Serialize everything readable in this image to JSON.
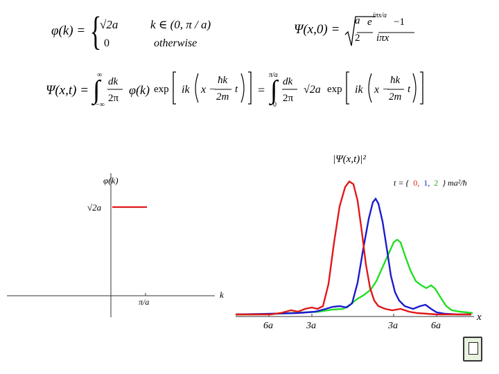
{
  "eq_phi": {
    "lhs": "φ(k) =",
    "case1_val": "√2a",
    "case1_cond": "k ∈ (0, π / a)",
    "case2_val": "0",
    "case2_cond": "otherwise"
  },
  "eq_psi0": {
    "lhs": "Ψ(x,0) =",
    "sqrt_num": "a",
    "sqrt_den": "2",
    "frac_num": "e",
    "frac_num_sup": "iπx/a",
    "frac_num_tail": "−1",
    "frac_den": "iπx"
  },
  "eq_psit": {
    "lhs": "Ψ(x,t) =",
    "int1_upper": "∞",
    "int1_lower": "−∞",
    "dk_num": "dk",
    "dk_den": "2π",
    "phi_k": "φ(k)",
    "exp": "exp",
    "ik": "ik",
    "x_minus": "x −",
    "hk_num": "ħk",
    "hk_den": "2m",
    "t": "t",
    "eq2": "=",
    "int2_upper": "π/a",
    "int2_lower": "0",
    "sqrt2a": "√2a"
  },
  "left_plot": {
    "y_label": "φ(k)",
    "y_tick": "√2a",
    "x_label": "k",
    "x_tick": "π/a"
  },
  "right_plot": {
    "y_label": "|Ψ(x,t)|²",
    "legend_prefix": "t = {",
    "legend_t0": "0,",
    "legend_t1": "1,",
    "legend_t2": "2",
    "legend_suffix": "} ma²/ħ",
    "x_label": "x",
    "x_ticks": [
      "6a",
      "3a",
      "3a",
      "6a"
    ],
    "colors": {
      "t0": "#e01818",
      "t1": "#1a1ad0",
      "t2": "#22dd22"
    }
  },
  "icons": {
    "corner": "document-icon"
  }
}
